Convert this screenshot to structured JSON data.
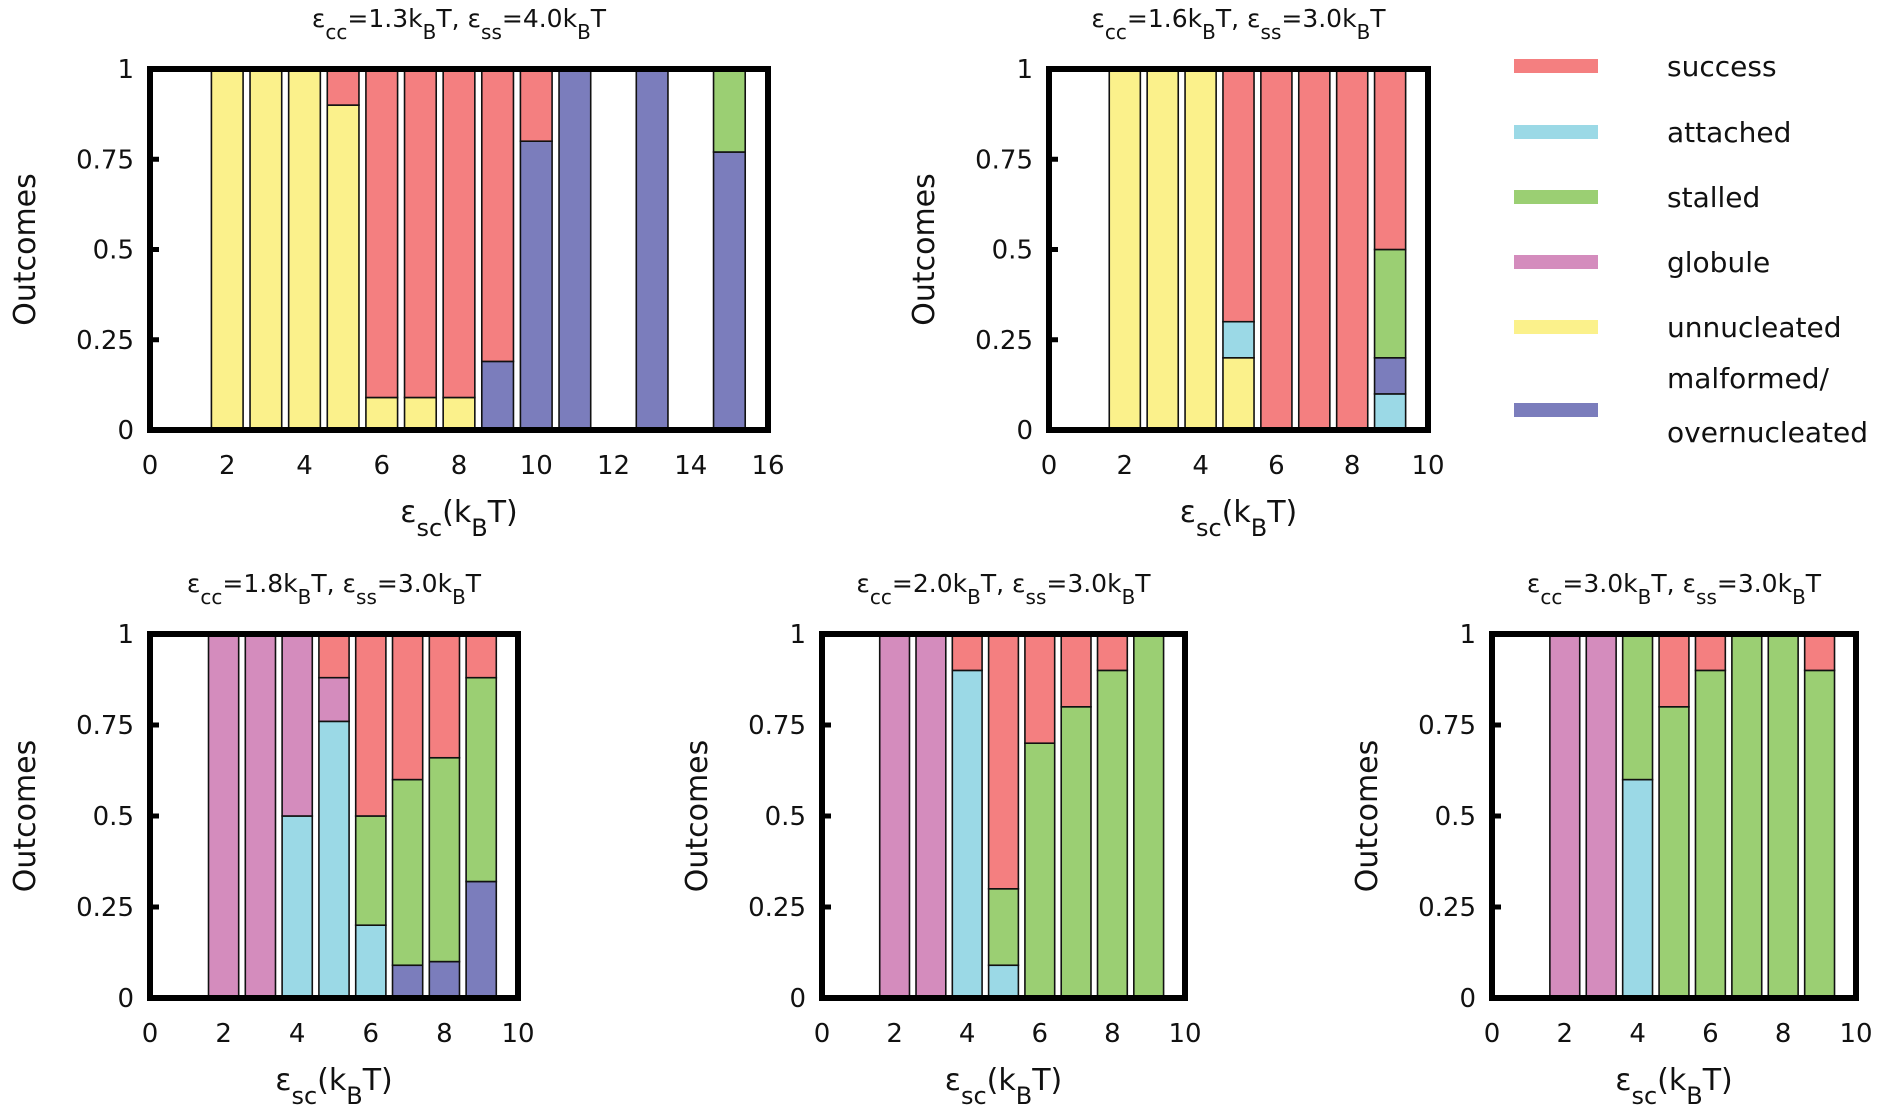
{
  "colors": {
    "success": "#f47f80",
    "attached": "#9bd9e6",
    "stalled": "#9bcf73",
    "globule": "#d48cbd",
    "unnucleated": "#fbf18b",
    "malformed": "#7b7dbc"
  },
  "legend": [
    {
      "key": "success",
      "label": "success"
    },
    {
      "key": "attached",
      "label": "attached"
    },
    {
      "key": "stalled",
      "label": "stalled"
    },
    {
      "key": "globule",
      "label": "globule"
    },
    {
      "key": "unnucleated",
      "label": "unnucleated"
    },
    {
      "key": "malformed",
      "label": "malformed/",
      "label2": "overnucleated"
    }
  ],
  "chart_data": [
    {
      "type": "bar",
      "stacked": true,
      "title_parts": [
        [
          "ε",
          0
        ],
        [
          "cc",
          1
        ],
        [
          "=1.3k",
          0
        ],
        [
          "B",
          1
        ],
        [
          "T, ε",
          0
        ],
        [
          "ss",
          1
        ],
        [
          "=4.0k",
          0
        ],
        [
          "B",
          1
        ],
        [
          "T",
          0
        ]
      ],
      "ylabel": "Outcomes",
      "xlabel_parts": [
        [
          "ε",
          0
        ],
        [
          "sc",
          1
        ],
        [
          "(k",
          0
        ],
        [
          "B",
          1
        ],
        [
          "T)",
          0
        ]
      ],
      "xlim": [
        0,
        16
      ],
      "ylim": [
        0,
        1
      ],
      "xticks": [
        "0",
        "2",
        "4",
        "6",
        "8",
        "10",
        "12",
        "14",
        "16"
      ],
      "yticks": [
        "0",
        "0.25",
        "0.5",
        "0.75",
        "1"
      ],
      "bars": [
        {
          "x": 2,
          "segments": [
            [
              "unnucleated",
              1
            ]
          ]
        },
        {
          "x": 3,
          "segments": [
            [
              "unnucleated",
              1
            ]
          ]
        },
        {
          "x": 4,
          "segments": [
            [
              "unnucleated",
              1
            ]
          ]
        },
        {
          "x": 5,
          "segments": [
            [
              "unnucleated",
              0.9
            ],
            [
              "success",
              0.1
            ]
          ]
        },
        {
          "x": 6,
          "segments": [
            [
              "unnucleated",
              0.09
            ],
            [
              "success",
              0.91
            ]
          ]
        },
        {
          "x": 7,
          "segments": [
            [
              "unnucleated",
              0.09
            ],
            [
              "success",
              0.91
            ]
          ]
        },
        {
          "x": 8,
          "segments": [
            [
              "unnucleated",
              0.09
            ],
            [
              "success",
              0.91
            ]
          ]
        },
        {
          "x": 9,
          "segments": [
            [
              "malformed",
              0.19
            ],
            [
              "success",
              0.81
            ]
          ]
        },
        {
          "x": 10,
          "segments": [
            [
              "malformed",
              0.8
            ],
            [
              "success",
              0.2
            ]
          ]
        },
        {
          "x": 11,
          "segments": [
            [
              "malformed",
              1
            ]
          ]
        },
        {
          "x": 13,
          "segments": [
            [
              "malformed",
              1
            ]
          ]
        },
        {
          "x": 15,
          "segments": [
            [
              "malformed",
              0.77
            ],
            [
              "stalled",
              0.23
            ]
          ]
        }
      ]
    },
    {
      "type": "bar",
      "stacked": true,
      "title_parts": [
        [
          "ε",
          0
        ],
        [
          "cc",
          1
        ],
        [
          "=1.6k",
          0
        ],
        [
          "B",
          1
        ],
        [
          "T, ε",
          0
        ],
        [
          "ss",
          1
        ],
        [
          "=3.0k",
          0
        ],
        [
          "B",
          1
        ],
        [
          "T",
          0
        ]
      ],
      "ylabel": "Outcomes",
      "xlabel_parts": [
        [
          "ε",
          0
        ],
        [
          "sc",
          1
        ],
        [
          "(k",
          0
        ],
        [
          "B",
          1
        ],
        [
          "T)",
          0
        ]
      ],
      "xlim": [
        0,
        10
      ],
      "ylim": [
        0,
        1
      ],
      "xticks": [
        "0",
        "2",
        "4",
        "6",
        "8",
        "10"
      ],
      "yticks": [
        "0",
        "0.25",
        "0.5",
        "0.75",
        "1"
      ],
      "bars": [
        {
          "x": 2,
          "segments": [
            [
              "unnucleated",
              1
            ]
          ]
        },
        {
          "x": 3,
          "segments": [
            [
              "unnucleated",
              1
            ]
          ]
        },
        {
          "x": 4,
          "segments": [
            [
              "unnucleated",
              1
            ]
          ]
        },
        {
          "x": 5,
          "segments": [
            [
              "unnucleated",
              0.2
            ],
            [
              "attached",
              0.1
            ],
            [
              "success",
              0.7
            ]
          ]
        },
        {
          "x": 6,
          "segments": [
            [
              "success",
              1
            ]
          ]
        },
        {
          "x": 7,
          "segments": [
            [
              "success",
              1
            ]
          ]
        },
        {
          "x": 8,
          "segments": [
            [
              "success",
              1
            ]
          ]
        },
        {
          "x": 9,
          "segments": [
            [
              "attached",
              0.1
            ],
            [
              "malformed",
              0.1
            ],
            [
              "stalled",
              0.3
            ],
            [
              "success",
              0.5
            ]
          ]
        }
      ]
    },
    {
      "type": "bar",
      "stacked": true,
      "title_parts": [
        [
          "ε",
          0
        ],
        [
          "cc",
          1
        ],
        [
          "=1.8k",
          0
        ],
        [
          "B",
          1
        ],
        [
          "T, ε",
          0
        ],
        [
          "ss",
          1
        ],
        [
          "=3.0k",
          0
        ],
        [
          "B",
          1
        ],
        [
          "T",
          0
        ]
      ],
      "ylabel": "Outcomes",
      "xlabel_parts": [
        [
          "ε",
          0
        ],
        [
          "sc",
          1
        ],
        [
          "(k",
          0
        ],
        [
          "B",
          1
        ],
        [
          "T)",
          0
        ]
      ],
      "xlim": [
        0,
        10
      ],
      "ylim": [
        0,
        1
      ],
      "xticks": [
        "0",
        "2",
        "4",
        "6",
        "8",
        "10"
      ],
      "yticks": [
        "0",
        "0.25",
        "0.5",
        "0.75",
        "1"
      ],
      "bars": [
        {
          "x": 2,
          "segments": [
            [
              "globule",
              1
            ]
          ]
        },
        {
          "x": 3,
          "segments": [
            [
              "globule",
              1
            ]
          ]
        },
        {
          "x": 4,
          "segments": [
            [
              "attached",
              0.5
            ],
            [
              "globule",
              0.5
            ]
          ]
        },
        {
          "x": 5,
          "segments": [
            [
              "attached",
              0.76
            ],
            [
              "globule",
              0.12
            ],
            [
              "success",
              0.12
            ]
          ]
        },
        {
          "x": 6,
          "segments": [
            [
              "attached",
              0.2
            ],
            [
              "stalled",
              0.3
            ],
            [
              "success",
              0.5
            ]
          ]
        },
        {
          "x": 7,
          "segments": [
            [
              "malformed",
              0.09
            ],
            [
              "stalled",
              0.51
            ],
            [
              "success",
              0.4
            ]
          ]
        },
        {
          "x": 8,
          "segments": [
            [
              "malformed",
              0.1
            ],
            [
              "stalled",
              0.56
            ],
            [
              "success",
              0.34
            ]
          ]
        },
        {
          "x": 9,
          "segments": [
            [
              "malformed",
              0.32
            ],
            [
              "stalled",
              0.56
            ],
            [
              "success",
              0.12
            ]
          ]
        }
      ]
    },
    {
      "type": "bar",
      "stacked": true,
      "title_parts": [
        [
          "ε",
          0
        ],
        [
          "cc",
          1
        ],
        [
          "=2.0k",
          0
        ],
        [
          "B",
          1
        ],
        [
          "T, ε",
          0
        ],
        [
          "ss",
          1
        ],
        [
          "=3.0k",
          0
        ],
        [
          "B",
          1
        ],
        [
          "T",
          0
        ]
      ],
      "ylabel": "Outcomes",
      "xlabel_parts": [
        [
          "ε",
          0
        ],
        [
          "sc",
          1
        ],
        [
          "(k",
          0
        ],
        [
          "B",
          1
        ],
        [
          "T)",
          0
        ]
      ],
      "xlim": [
        0,
        10
      ],
      "ylim": [
        0,
        1
      ],
      "xticks": [
        "0",
        "2",
        "4",
        "6",
        "8",
        "10"
      ],
      "yticks": [
        "0",
        "0.25",
        "0.5",
        "0.75",
        "1"
      ],
      "bars": [
        {
          "x": 2,
          "segments": [
            [
              "globule",
              1
            ]
          ]
        },
        {
          "x": 3,
          "segments": [
            [
              "globule",
              1
            ]
          ]
        },
        {
          "x": 4,
          "segments": [
            [
              "attached",
              0.9
            ],
            [
              "success",
              0.1
            ]
          ]
        },
        {
          "x": 5,
          "segments": [
            [
              "attached",
              0.09
            ],
            [
              "stalled",
              0.21
            ],
            [
              "success",
              0.7
            ]
          ]
        },
        {
          "x": 6,
          "segments": [
            [
              "stalled",
              0.7
            ],
            [
              "success",
              0.3
            ]
          ]
        },
        {
          "x": 7,
          "segments": [
            [
              "stalled",
              0.8
            ],
            [
              "success",
              0.2
            ]
          ]
        },
        {
          "x": 8,
          "segments": [
            [
              "stalled",
              0.9
            ],
            [
              "success",
              0.1
            ]
          ]
        },
        {
          "x": 9,
          "segments": [
            [
              "stalled",
              1
            ]
          ]
        }
      ]
    },
    {
      "type": "bar",
      "stacked": true,
      "title_parts": [
        [
          "ε",
          0
        ],
        [
          "cc",
          1
        ],
        [
          "=3.0k",
          0
        ],
        [
          "B",
          1
        ],
        [
          "T, ε",
          0
        ],
        [
          "ss",
          1
        ],
        [
          "=3.0k",
          0
        ],
        [
          "B",
          1
        ],
        [
          "T",
          0
        ]
      ],
      "ylabel": "Outcomes",
      "xlabel_parts": [
        [
          "ε",
          0
        ],
        [
          "sc",
          1
        ],
        [
          "(k",
          0
        ],
        [
          "B",
          1
        ],
        [
          "T)",
          0
        ]
      ],
      "xlim": [
        0,
        10
      ],
      "ylim": [
        0,
        1
      ],
      "xticks": [
        "0",
        "2",
        "4",
        "6",
        "8",
        "10"
      ],
      "yticks": [
        "0",
        "0.25",
        "0.5",
        "0.75",
        "1"
      ],
      "bars": [
        {
          "x": 2,
          "segments": [
            [
              "globule",
              1
            ]
          ]
        },
        {
          "x": 3,
          "segments": [
            [
              "globule",
              1
            ]
          ]
        },
        {
          "x": 4,
          "segments": [
            [
              "attached",
              0.6
            ],
            [
              "stalled",
              0.4
            ]
          ]
        },
        {
          "x": 5,
          "segments": [
            [
              "stalled",
              0.8
            ],
            [
              "success",
              0.2
            ]
          ]
        },
        {
          "x": 6,
          "segments": [
            [
              "stalled",
              0.9
            ],
            [
              "success",
              0.1
            ]
          ]
        },
        {
          "x": 7,
          "segments": [
            [
              "stalled",
              1
            ]
          ]
        },
        {
          "x": 8,
          "segments": [
            [
              "stalled",
              1
            ]
          ]
        },
        {
          "x": 9,
          "segments": [
            [
              "stalled",
              0.9
            ],
            [
              "success",
              0.1
            ]
          ]
        }
      ]
    }
  ]
}
